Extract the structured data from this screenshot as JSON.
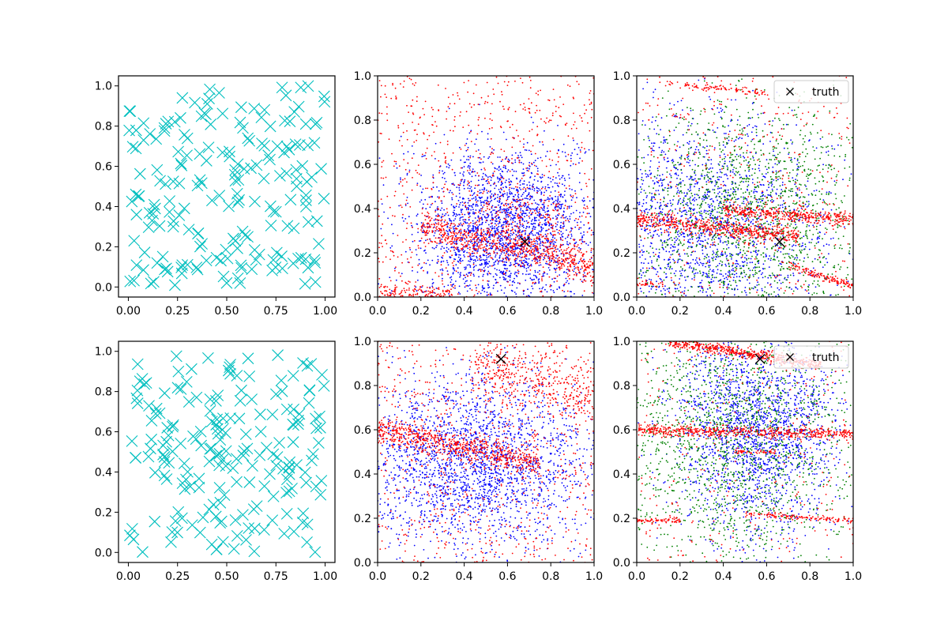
{
  "figure": {
    "background": "#ffffff"
  },
  "colors": {
    "cyan": "#00bfbf",
    "blue": "#0000ff",
    "red": "#ff0000",
    "green": "#008000",
    "black": "#000000"
  },
  "chart_data": [
    {
      "id": "top-left",
      "type": "scatter",
      "marker": "x-large",
      "color": "#00bfbf",
      "xlim": [
        -0.05,
        1.05
      ],
      "ylim": [
        -0.05,
        1.05
      ],
      "xticks": [
        "0.00",
        "0.25",
        "0.50",
        "0.75",
        "1.00"
      ],
      "yticks": [
        "0.0",
        "0.2",
        "0.4",
        "0.6",
        "0.8",
        "1.0"
      ],
      "n_points": 200,
      "distribution": "uniform random on [0,1]x[0,1]",
      "grid": false
    },
    {
      "id": "top-middle",
      "type": "scatter",
      "marker": "dot-small",
      "xlim": [
        0,
        1
      ],
      "ylim": [
        0,
        1
      ],
      "xticks": [
        "0.0",
        "0.2",
        "0.4",
        "0.6",
        "0.8",
        "1.0"
      ],
      "yticks": [
        "0.0",
        "0.2",
        "0.4",
        "0.6",
        "0.8",
        "1.0"
      ],
      "series": [
        {
          "color": "#0000ff",
          "n_points": 2400,
          "cluster": {
            "center": [
              0.6,
              0.3
            ],
            "spread": [
              0.22,
              0.18
            ]
          }
        },
        {
          "color": "#ff0000",
          "n_points": 1800,
          "bands": [
            {
              "y_at_x0": 0.35,
              "slope": -0.2,
              "width": 0.035,
              "x_range": [
                0.2,
                1.0
              ],
              "weight": 0.4
            },
            {
              "y_at_x0": 0.03,
              "slope": -0.05,
              "width": 0.02,
              "x_range": [
                0,
                0.35
              ],
              "weight": 0.08
            },
            {
              "y_at_x0": 0.5,
              "slope": -0.2,
              "width": 0.06,
              "x_range": [
                0.45,
                0.85
              ],
              "weight": 0.08
            }
          ],
          "background_fraction": 0.44
        }
      ],
      "highlight": {
        "x": 0.68,
        "y": 0.25,
        "marker": "x",
        "color": "#000000"
      },
      "grid": false
    },
    {
      "id": "top-right",
      "type": "scatter",
      "marker": "dot-small",
      "xlim": [
        0,
        1
      ],
      "ylim": [
        0,
        1
      ],
      "xticks": [
        "0.0",
        "0.2",
        "0.4",
        "0.6",
        "0.8",
        "1.0"
      ],
      "yticks": [
        "0.0",
        "0.2",
        "0.4",
        "0.6",
        "0.8",
        "1.0"
      ],
      "series": [
        {
          "color": "#0000ff",
          "n_points": 2000,
          "cluster": {
            "center": [
              0.3,
              0.3
            ],
            "spread": [
              0.3,
              0.25
            ]
          }
        },
        {
          "color": "#008000",
          "n_points": 1800,
          "cluster": {
            "center": [
              0.5,
              0.35
            ],
            "spread": [
              0.3,
              0.28
            ]
          }
        },
        {
          "color": "#ff0000",
          "n_points": 1600,
          "bands": [
            {
              "y_at_x0": 0.35,
              "slope": -0.1,
              "width": 0.018,
              "x_range": [
                0,
                0.75
              ],
              "weight": 0.35
            },
            {
              "y_at_x0": 0.42,
              "slope": -0.07,
              "width": 0.015,
              "x_range": [
                0.4,
                1.0
              ],
              "weight": 0.25
            },
            {
              "y_at_x0": 0.98,
              "slope": -0.1,
              "width": 0.008,
              "x_range": [
                0.15,
                0.6
              ],
              "weight": 0.06
            },
            {
              "y_at_x0": 0.06,
              "slope": 0.0,
              "width": 0.006,
              "x_range": [
                0,
                0.12
              ],
              "weight": 0.02
            },
            {
              "y_at_x0": 0.35,
              "slope": -0.3,
              "width": 0.01,
              "x_range": [
                0.7,
                1.0
              ],
              "weight": 0.08
            }
          ],
          "background_fraction": 0.24
        }
      ],
      "highlight": {
        "x": 0.66,
        "y": 0.25,
        "marker": "x",
        "color": "#000000"
      },
      "legend": {
        "label": "truth",
        "placement": "upper-right"
      },
      "grid": false
    },
    {
      "id": "bottom-left",
      "type": "scatter",
      "marker": "x-large",
      "color": "#00bfbf",
      "xlim": [
        -0.05,
        1.05
      ],
      "ylim": [
        -0.05,
        1.05
      ],
      "xticks": [
        "0.00",
        "0.25",
        "0.50",
        "0.75",
        "1.00"
      ],
      "yticks": [
        "0.0",
        "0.2",
        "0.4",
        "0.6",
        "0.8",
        "1.0"
      ],
      "n_points": 200,
      "distribution": "uniform random on [0,1]x[0,1]",
      "grid": false
    },
    {
      "id": "bottom-middle",
      "type": "scatter",
      "marker": "dot-small",
      "xlim": [
        0,
        1
      ],
      "ylim": [
        0,
        1
      ],
      "xticks": [
        "0.0",
        "0.2",
        "0.4",
        "0.6",
        "0.8",
        "1.0"
      ],
      "yticks": [
        "0.0",
        "0.2",
        "0.4",
        "0.6",
        "0.8",
        "1.0"
      ],
      "series": [
        {
          "color": "#0000ff",
          "n_points": 2400,
          "cluster": {
            "center": [
              0.45,
              0.45
            ],
            "spread": [
              0.28,
              0.2
            ]
          }
        },
        {
          "color": "#ff0000",
          "n_points": 1800,
          "bands": [
            {
              "y_at_x0": 0.6,
              "slope": -0.2,
              "width": 0.03,
              "x_range": [
                0,
                0.75
              ],
              "weight": 0.38
            },
            {
              "y_at_x0": 1.05,
              "slope": -0.3,
              "width": 0.07,
              "x_range": [
                0.45,
                1.0
              ],
              "weight": 0.22
            }
          ],
          "background_fraction": 0.4
        }
      ],
      "highlight": {
        "x": 0.57,
        "y": 0.92,
        "marker": "x",
        "color": "#000000"
      },
      "grid": false
    },
    {
      "id": "bottom-right",
      "type": "scatter",
      "marker": "dot-small",
      "xlim": [
        0,
        1
      ],
      "ylim": [
        0,
        1
      ],
      "xticks": [
        "0.0",
        "0.2",
        "0.4",
        "0.6",
        "0.8",
        "1.0"
      ],
      "yticks": [
        "0.0",
        "0.2",
        "0.4",
        "0.6",
        "0.8",
        "1.0"
      ],
      "series": [
        {
          "color": "#0000ff",
          "n_points": 2000,
          "cluster": {
            "center": [
              0.55,
              0.6
            ],
            "spread": [
              0.18,
              0.25
            ]
          }
        },
        {
          "color": "#008000",
          "n_points": 1800,
          "cluster": {
            "center": [
              0.45,
              0.55
            ],
            "spread": [
              0.3,
              0.3
            ]
          }
        },
        {
          "color": "#ff0000",
          "n_points": 1600,
          "bands": [
            {
              "y_at_x0": 0.6,
              "slope": -0.02,
              "width": 0.012,
              "x_range": [
                0,
                1.0
              ],
              "weight": 0.35
            },
            {
              "y_at_x0": 1.02,
              "slope": -0.15,
              "width": 0.012,
              "x_range": [
                0.15,
                0.85
              ],
              "weight": 0.32
            },
            {
              "y_at_x0": 0.25,
              "slope": -0.06,
              "width": 0.006,
              "x_range": [
                0.5,
                1.0
              ],
              "weight": 0.08
            },
            {
              "y_at_x0": 0.19,
              "slope": 0.0,
              "width": 0.005,
              "x_range": [
                0,
                0.2
              ],
              "weight": 0.04
            },
            {
              "y_at_x0": 0.5,
              "slope": 0.0,
              "width": 0.005,
              "x_range": [
                0.45,
                0.65
              ],
              "weight": 0.03
            }
          ],
          "background_fraction": 0.18
        }
      ],
      "highlight": {
        "x": 0.57,
        "y": 0.92,
        "marker": "x",
        "color": "#000000"
      },
      "legend": {
        "label": "truth",
        "placement": "upper-right"
      },
      "grid": false
    }
  ]
}
